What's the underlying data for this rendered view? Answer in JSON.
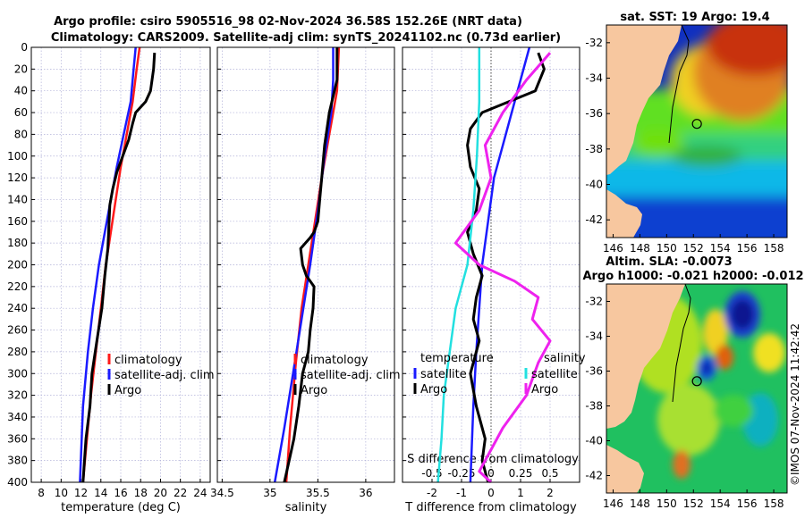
{
  "titles": {
    "line1": "Argo profile: csiro 5905516_98 02-Nov-2024 36.58S 152.26E (NRT data)",
    "line2": "Climatology: CARS2009. Satellite-adj clim: synTS_20241102.nc (0.73d earlier)",
    "sst": "sat. SST: 19 Argo: 19.4",
    "sla1": "Altim. SLA: -0.0073",
    "sla2": "Argo h1000: -0.021 h2000: -0.012"
  },
  "stamp": "©IMOS 07-Nov-2024 11:42:42",
  "colors": {
    "climatology": "#ff1a1a",
    "satellite": "#1a1aff",
    "argo": "#000000",
    "sal_sat": "#22e0e0",
    "sal_argo": "#ee22ee",
    "land": "#f7c79f",
    "grid": "#b0b0d8"
  },
  "chart_data": [
    {
      "type": "line",
      "name": "temperature-panel",
      "xlabel": "temperature (deg C)",
      "xlim": [
        7,
        25
      ],
      "ylim": [
        0,
        400
      ],
      "xticks": [
        "8",
        "10",
        "12",
        "14",
        "16",
        "18",
        "20",
        "22",
        "24"
      ],
      "yticks": [
        "0",
        "20",
        "40",
        "60",
        "80",
        "100",
        "120",
        "140",
        "160",
        "180",
        "200",
        "220",
        "240",
        "260",
        "280",
        "300",
        "320",
        "340",
        "360",
        "380",
        "400"
      ],
      "legend": [
        "climatology",
        "satellite-adj. clim",
        "Argo"
      ],
      "series": [
        {
          "name": "climatology",
          "color": "#ff1a1a",
          "x": [
            17.9,
            17.6,
            17.2,
            16.6,
            16.0,
            15.5,
            15.0,
            14.5,
            14.0,
            13.5,
            13.0,
            12.6,
            12.2
          ],
          "y": [
            0,
            20,
            50,
            80,
            110,
            140,
            170,
            200,
            240,
            280,
            320,
            360,
            400
          ]
        },
        {
          "name": "satellite-adj. clim",
          "color": "#1a1aff",
          "x": [
            17.5,
            17.3,
            17.0,
            16.3,
            15.6,
            15.0,
            14.4,
            13.8,
            13.2,
            12.7,
            12.2,
            11.9
          ],
          "y": [
            0,
            20,
            50,
            80,
            110,
            140,
            170,
            200,
            240,
            280,
            330,
            400
          ]
        },
        {
          "name": "Argo",
          "color": "#000000",
          "x": [
            19.4,
            19.3,
            19.0,
            18.5,
            17.5,
            17.2,
            16.8,
            16.2,
            15.6,
            15.2,
            14.9,
            14.8,
            14.7,
            14.4,
            14.1,
            13.6,
            13.1,
            12.9,
            12.5,
            12.2
          ],
          "y": [
            5,
            20,
            40,
            50,
            60,
            70,
            85,
            100,
            115,
            130,
            145,
            165,
            185,
            210,
            240,
            270,
            300,
            330,
            360,
            400
          ]
        }
      ]
    },
    {
      "type": "line",
      "name": "salinity-panel",
      "xlabel": "salinity",
      "xlim": [
        34.45,
        36.3
      ],
      "ylim": [
        0,
        400
      ],
      "xticks": [
        "34.5",
        "35",
        "35.5",
        "36"
      ],
      "legend": [
        "climatology",
        "satellite-adj. clim",
        "Argo"
      ],
      "series": [
        {
          "name": "climatology",
          "color": "#ff1a1a",
          "x": [
            35.72,
            35.7,
            35.62,
            35.54,
            35.47,
            35.4,
            35.33,
            35.27,
            35.21,
            35.17
          ],
          "y": [
            0,
            40,
            80,
            120,
            160,
            200,
            240,
            290,
            350,
            400
          ]
        },
        {
          "name": "satellite-adj. clim",
          "color": "#1a1aff",
          "x": [
            35.66,
            35.66,
            35.64,
            35.57,
            35.5,
            35.42,
            35.33,
            35.24,
            35.15,
            35.05
          ],
          "y": [
            0,
            30,
            60,
            100,
            150,
            200,
            250,
            300,
            350,
            400
          ]
        },
        {
          "name": "Argo",
          "color": "#000000",
          "x": [
            35.7,
            35.7,
            35.62,
            35.57,
            35.54,
            35.52,
            35.5,
            35.46,
            35.42,
            35.32,
            35.34,
            35.38,
            35.46,
            35.45,
            35.42,
            35.4,
            35.34,
            35.3,
            35.25,
            35.2,
            35.15
          ],
          "y": [
            0,
            30,
            60,
            90,
            120,
            140,
            160,
            170,
            175,
            185,
            200,
            210,
            220,
            240,
            260,
            280,
            300,
            330,
            360,
            380,
            400
          ]
        }
      ]
    },
    {
      "type": "line",
      "name": "difference-panel",
      "xlabel": "T difference from climatology",
      "xlabel2": "S difference from climatology",
      "xlim": [
        -3,
        3
      ],
      "ylim": [
        0,
        400
      ],
      "xticks": [
        "-2",
        "-1",
        "0",
        "1",
        "2"
      ],
      "xticks2": [
        "-0.5",
        "-0.25",
        "0",
        "0.25",
        "0.5"
      ],
      "legend_t_title": "temperature",
      "legend_s_title": "salinity",
      "legend_labels": [
        "satellite",
        "Argo"
      ],
      "series": [
        {
          "name": "temperature satellite",
          "color": "#1a1aff",
          "x": [
            1.3,
            1.0,
            0.7,
            0.4,
            0.1,
            -0.1,
            -0.3,
            -0.4,
            -0.5,
            -0.6,
            -0.7
          ],
          "y": [
            0,
            30,
            60,
            90,
            120,
            160,
            200,
            240,
            280,
            330,
            400
          ]
        },
        {
          "name": "temperature Argo",
          "color": "#000000",
          "x": [
            1.6,
            1.8,
            1.5,
            0.6,
            -0.3,
            -0.7,
            -0.8,
            -0.7,
            -0.4,
            -0.5,
            -0.8,
            -0.6,
            -0.3,
            -0.5,
            -0.6,
            -0.4,
            -0.7,
            -0.5,
            -0.2,
            -0.3,
            -0.1
          ],
          "y": [
            5,
            20,
            40,
            50,
            60,
            75,
            90,
            110,
            130,
            150,
            170,
            190,
            210,
            230,
            250,
            270,
            300,
            330,
            360,
            380,
            400
          ]
        },
        {
          "name": "salinity satellite",
          "color": "#22e0e0",
          "x": [
            -0.1,
            -0.1,
            -0.12,
            -0.15,
            -0.2,
            -0.3,
            -0.35,
            -0.4,
            -0.42,
            -0.45
          ],
          "y": [
            0,
            50,
            100,
            150,
            200,
            240,
            280,
            320,
            360,
            400
          ]
        },
        {
          "name": "salinity Argo",
          "color": "#ee22ee",
          "x": [
            0.5,
            0.3,
            0.1,
            -0.05,
            0.0,
            -0.1,
            -0.3,
            -0.1,
            0.2,
            0.4,
            0.35,
            0.5,
            0.4,
            0.3,
            0.1,
            0.0,
            -0.1,
            0.0
          ],
          "y": [
            5,
            30,
            60,
            90,
            120,
            150,
            180,
            200,
            215,
            230,
            250,
            270,
            290,
            320,
            350,
            370,
            390,
            400
          ]
        }
      ]
    },
    {
      "type": "heatmap",
      "name": "sst-map",
      "title": "sat. SST: 19 Argo: 19.4",
      "xlim": [
        145.5,
        159
      ],
      "ylim": [
        -43,
        -31
      ],
      "xticks": [
        "146",
        "148",
        "150",
        "152",
        "154",
        "156",
        "158"
      ],
      "yticks": [
        "-32",
        "-34",
        "-36",
        "-38",
        "-40",
        "-42"
      ],
      "float_location": {
        "lon": 152.26,
        "lat": -36.58
      }
    },
    {
      "type": "heatmap",
      "name": "sla-map",
      "title": "Altim. SLA: -0.0073",
      "xlim": [
        145.5,
        159
      ],
      "ylim": [
        -43,
        -31
      ],
      "xticks": [
        "146",
        "148",
        "150",
        "152",
        "154",
        "156",
        "158"
      ],
      "yticks": [
        "-32",
        "-34",
        "-36",
        "-38",
        "-40",
        "-42"
      ],
      "float_location": {
        "lon": 152.26,
        "lat": -36.58
      }
    }
  ]
}
